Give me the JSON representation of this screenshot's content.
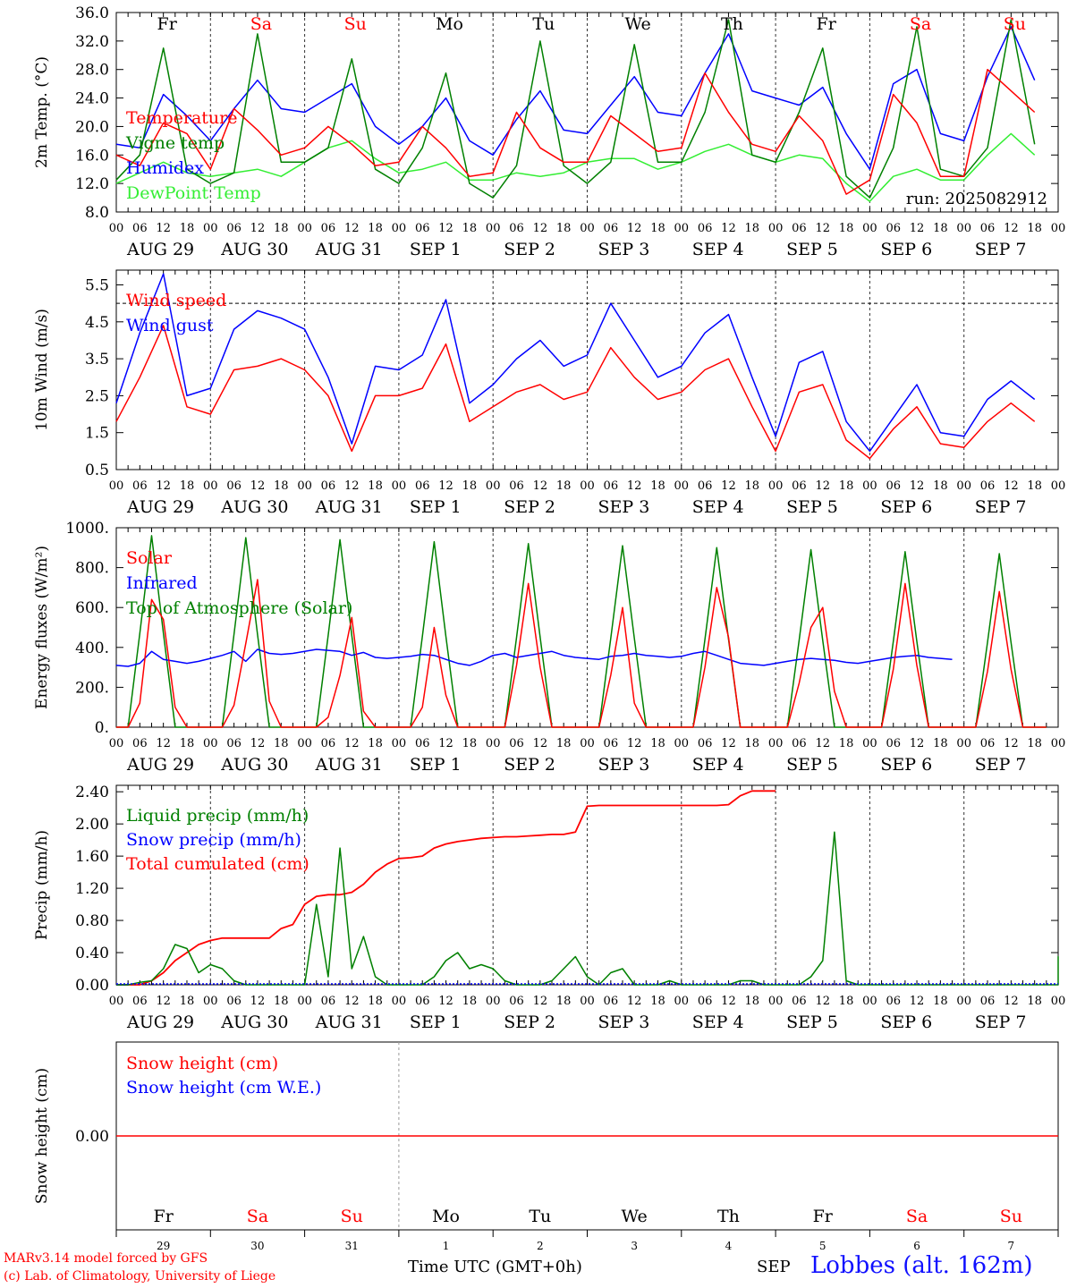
{
  "run_label": "run: 2025082912",
  "day_names": [
    "Fr",
    "Sa",
    "Su",
    "Mo",
    "Tu",
    "We",
    "Th",
    "Fr",
    "Sa",
    "Su"
  ],
  "weekend_days": [
    1,
    2,
    8,
    9
  ],
  "date_labels": [
    "AUG 29",
    "AUG 30",
    "AUG 31",
    "SEP  1",
    "SEP  2",
    "SEP  3",
    "SEP  4",
    "SEP  5",
    "SEP  6",
    "SEP  7"
  ],
  "hour_ticks": [
    "00",
    "06",
    "12",
    "18"
  ],
  "final_hour_tick": "00",
  "bottom_day_numbers": [
    "29",
    "30",
    "31",
    "1",
    "2",
    "3",
    "4",
    "5",
    "6",
    "7"
  ],
  "footer": {
    "model": "MARv3.14 model forced by GFS",
    "lab": "(c) Lab. of Climatology, University of Liege",
    "xlabel": "Time UTC (GMT+0h)",
    "month": "SEP",
    "station": "Lobbes (alt. 162m)"
  },
  "colors": {
    "red": "#ff0000",
    "blue": "#0000ff",
    "green": "#008000",
    "lightgreen": "#33ee33",
    "dark": "#000000"
  },
  "chart_data": [
    {
      "type": "line",
      "ylabel": "2m Temp. (°C)",
      "ylim": [
        8,
        36
      ],
      "yticks": [
        "8.0",
        "12.0",
        "16.0",
        "20.0",
        "24.0",
        "28.0",
        "32.0",
        "36.0"
      ],
      "ytick_values": [
        8,
        12,
        16,
        20,
        24,
        28,
        32,
        36
      ],
      "hours_per_point": 6,
      "series": [
        {
          "name": "Temperature",
          "color": "#ff0000",
          "values": [
            16,
            14.5,
            20.5,
            19,
            14,
            22.5,
            19.5,
            16,
            17,
            20,
            17.5,
            14.5,
            15,
            20,
            17,
            13,
            13.5,
            22,
            17,
            15,
            15,
            21.5,
            19,
            16.5,
            17,
            27.5,
            22,
            17.5,
            16.5,
            21.5,
            18,
            10.5,
            12.5,
            24.5,
            20.5,
            13,
            13,
            28,
            25,
            22
          ]
        },
        {
          "name": "Vigne temp",
          "color": "#008000",
          "values": [
            12.5,
            16,
            31,
            14,
            12,
            13.5,
            33,
            15,
            15,
            17,
            29.5,
            14,
            12,
            17,
            27.5,
            12,
            10,
            14.5,
            32,
            14.5,
            12,
            15,
            31.5,
            15,
            15,
            22,
            35,
            16,
            15,
            22,
            31,
            13,
            10,
            17,
            34,
            14,
            13,
            17,
            35,
            17.5
          ]
        },
        {
          "name": "Humidex",
          "color": "#0000ff",
          "values": [
            17.5,
            17,
            24.5,
            21.5,
            18,
            22.5,
            26.5,
            22.5,
            22,
            24,
            26,
            20,
            17.5,
            20,
            24,
            18,
            16,
            21,
            25,
            19.5,
            19,
            23,
            27,
            22,
            21.5,
            27.5,
            33,
            25,
            24,
            23,
            25.5,
            19,
            14,
            26,
            28,
            19,
            18,
            27,
            34,
            26.5
          ]
        },
        {
          "name": "DewPoint Temp",
          "color": "#33ee33",
          "values": [
            12,
            13.5,
            15,
            13.5,
            13,
            13.5,
            14,
            13,
            15,
            17,
            18,
            15.5,
            13.5,
            14,
            15,
            12.5,
            12.5,
            13.5,
            13,
            13.5,
            15,
            15.5,
            15.5,
            14,
            15,
            16.5,
            17.5,
            16,
            15,
            16,
            15.5,
            12,
            9.5,
            13,
            14,
            12.5,
            12.5,
            16,
            19,
            16
          ]
        }
      ]
    },
    {
      "type": "line",
      "ylabel": "10m Wind (m/s)",
      "ylim": [
        0.5,
        5.9
      ],
      "yticks": [
        "0.5",
        "1.5",
        "2.5",
        "3.5",
        "4.5",
        "5.5"
      ],
      "ytick_values": [
        0.5,
        1.5,
        2.5,
        3.5,
        4.5,
        5.5
      ],
      "reference_line": 5.0,
      "hours_per_point": 6,
      "series": [
        {
          "name": "Wind speed",
          "color": "#ff0000",
          "values": [
            1.8,
            3,
            4.4,
            2.2,
            2,
            3.2,
            3.3,
            3.5,
            3.2,
            2.5,
            1,
            2.5,
            2.5,
            2.7,
            3.9,
            1.8,
            2.2,
            2.6,
            2.8,
            2.4,
            2.6,
            3.8,
            3,
            2.4,
            2.6,
            3.2,
            3.5,
            2.2,
            1,
            2.6,
            2.8,
            1.3,
            0.8,
            1.6,
            2.2,
            1.2,
            1.1,
            1.8,
            2.3,
            1.8
          ]
        },
        {
          "name": "Wind gust",
          "color": "#0000ff",
          "values": [
            2.3,
            4.2,
            5.8,
            2.5,
            2.7,
            4.3,
            4.8,
            4.6,
            4.3,
            3,
            1.2,
            3.3,
            3.2,
            3.6,
            5.1,
            2.3,
            2.8,
            3.5,
            4,
            3.3,
            3.6,
            5,
            4,
            3,
            3.3,
            4.2,
            4.7,
            3,
            1.4,
            3.4,
            3.7,
            1.8,
            1,
            1.9,
            2.8,
            1.5,
            1.4,
            2.4,
            2.9,
            2.4
          ]
        }
      ]
    },
    {
      "type": "line",
      "ylabel": "Energy fluxes (W/m²)",
      "ylim": [
        0,
        1000
      ],
      "yticks": [
        "0.",
        "200.",
        "400.",
        "600.",
        "800.",
        "1000."
      ],
      "ytick_values": [
        0,
        200,
        400,
        600,
        800,
        1000
      ],
      "hours_per_point": 3,
      "series": [
        {
          "name": "Solar",
          "color": "#ff0000",
          "values": [
            0,
            0,
            120,
            640,
            540,
            100,
            0,
            0,
            0,
            0,
            110,
            420,
            740,
            130,
            0,
            0,
            0,
            0,
            50,
            260,
            550,
            80,
            0,
            0,
            0,
            0,
            100,
            500,
            160,
            0,
            0,
            0,
            0,
            0,
            310,
            720,
            300,
            0,
            0,
            0,
            0,
            0,
            260,
            600,
            120,
            0,
            0,
            0,
            0,
            0,
            300,
            700,
            450,
            0,
            0,
            0,
            0,
            0,
            220,
            500,
            600,
            180,
            0,
            0,
            0,
            0,
            290,
            720,
            310,
            0,
            0,
            0,
            0,
            0,
            280,
            680,
            290,
            0,
            0,
            0
          ]
        },
        {
          "name": "Infrared",
          "color": "#0000ff",
          "values": [
            310,
            305,
            320,
            380,
            340,
            330,
            320,
            330,
            345,
            360,
            380,
            330,
            390,
            370,
            365,
            370,
            380,
            390,
            385,
            380,
            360,
            375,
            350,
            345,
            350,
            355,
            365,
            360,
            340,
            320,
            310,
            330,
            360,
            370,
            350,
            360,
            370,
            380,
            360,
            350,
            345,
            340,
            355,
            360,
            370,
            360,
            355,
            350,
            355,
            370,
            380,
            360,
            340,
            320,
            315,
            310,
            320,
            330,
            340,
            345,
            340,
            335,
            325,
            320,
            330,
            340,
            350,
            355,
            360,
            350,
            345,
            340
          ]
        },
        {
          "name": "Top of Atmosphere (Solar)",
          "color": "#008000",
          "values": [
            0,
            0,
            470,
            960,
            470,
            0,
            0,
            0,
            0,
            0,
            465,
            950,
            465,
            0,
            0,
            0,
            0,
            0,
            460,
            940,
            460,
            0,
            0,
            0,
            0,
            0,
            455,
            930,
            455,
            0,
            0,
            0,
            0,
            0,
            450,
            920,
            450,
            0,
            0,
            0,
            0,
            0,
            445,
            910,
            445,
            0,
            0,
            0,
            0,
            0,
            440,
            900,
            440,
            0,
            0,
            0,
            0,
            0,
            435,
            890,
            435,
            0,
            0,
            0,
            0,
            0,
            430,
            880,
            430,
            0,
            0,
            0,
            0,
            0,
            425,
            870,
            425,
            0,
            0,
            0
          ]
        }
      ]
    },
    {
      "type": "line",
      "ylabel": "Precip (mm/h)",
      "ylim": [
        0,
        2.48
      ],
      "yticks": [
        "0.00",
        "0.40",
        "0.80",
        "1.20",
        "1.60",
        "2.00",
        "2.40"
      ],
      "ytick_values": [
        0,
        0.4,
        0.8,
        1.2,
        1.6,
        2,
        2.4
      ],
      "hours_per_point": 3,
      "series": [
        {
          "name": "Liquid precip (mm/h)",
          "color": "#008000",
          "values": [
            0,
            0,
            0.03,
            0.05,
            0.2,
            0.5,
            0.45,
            0.15,
            0.25,
            0.2,
            0.05,
            0,
            0,
            0,
            0,
            0,
            0,
            1.0,
            0.1,
            1.7,
            0.2,
            0.6,
            0.1,
            0,
            0,
            0,
            0,
            0.1,
            0.3,
            0.4,
            0.2,
            0.25,
            0.2,
            0.05,
            0,
            0,
            0,
            0.05,
            0.2,
            0.35,
            0.1,
            0,
            0.15,
            0.2,
            0,
            0,
            0,
            0.05,
            0,
            0,
            0,
            0,
            0,
            0.05,
            0.05,
            0,
            0,
            0,
            0,
            0.1,
            0.3,
            1.9,
            0.05,
            0,
            0,
            0,
            0,
            0,
            0,
            0,
            0,
            0,
            0,
            0,
            0,
            0,
            0,
            0,
            0,
            0,
            0,
            0,
            0,
            0.2,
            0.35,
            0.1,
            0,
            0
          ]
        },
        {
          "name": "Snow precip (mm/h)",
          "color": "#0000ff",
          "values": [
            0,
            0
          ]
        },
        {
          "name": "Total cumulated (cm)",
          "color": "#ff0000",
          "values": [
            0,
            0,
            0,
            0.05,
            0.15,
            0.3,
            0.4,
            0.5,
            0.55,
            0.58,
            0.58,
            0.58,
            0.58,
            0.58,
            0.7,
            0.75,
            1.0,
            1.1,
            1.12,
            1.12,
            1.15,
            1.25,
            1.4,
            1.5,
            1.57,
            1.58,
            1.6,
            1.7,
            1.75,
            1.78,
            1.8,
            1.82,
            1.83,
            1.84,
            1.84,
            1.85,
            1.86,
            1.87,
            1.87,
            1.9,
            2.22,
            2.23,
            2.23,
            2.23,
            2.23,
            2.23,
            2.23,
            2.23,
            2.23,
            2.23,
            2.23,
            2.23,
            2.24,
            2.35,
            2.41,
            2.41,
            2.41
          ]
        }
      ]
    },
    {
      "type": "line",
      "ylabel": "Snow height (cm)",
      "ylim": [
        -1,
        1
      ],
      "yticks": [
        "0.00"
      ],
      "ytick_values": [
        0
      ],
      "hours_per_point": 24,
      "series": [
        {
          "name": "Snow height (cm)",
          "color": "#ff0000",
          "values": [
            0,
            0,
            0,
            0,
            0,
            0,
            0,
            0,
            0,
            0,
            0
          ]
        },
        {
          "name": "Snow height (cm W.E.)",
          "color": "#0000ff",
          "values": []
        }
      ]
    }
  ]
}
